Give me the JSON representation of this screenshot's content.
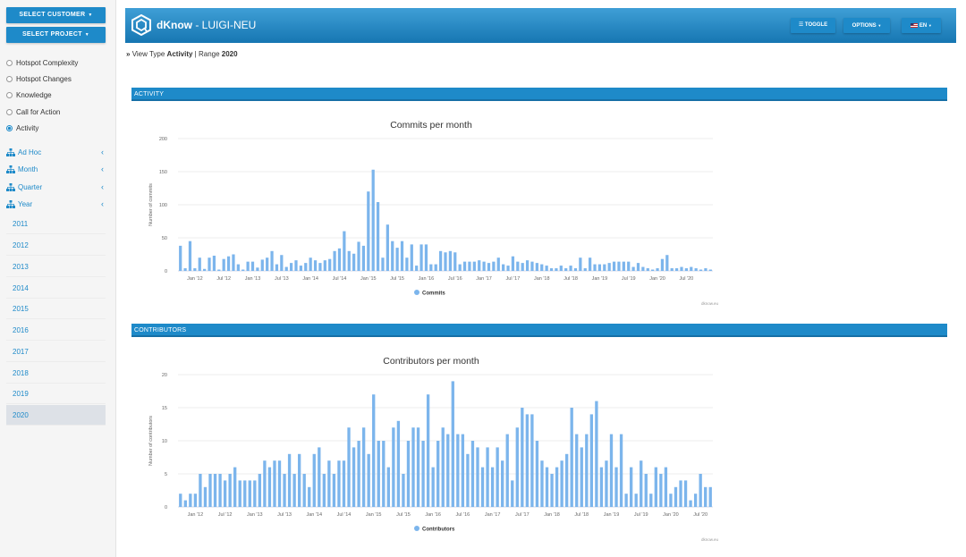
{
  "sidebar": {
    "select_customer": "SELECT CUSTOMER",
    "select_project": "SELECT PROJECT",
    "radio_items": [
      {
        "label": "Hotspot Complexity",
        "checked": false
      },
      {
        "label": "Hotspot Changes",
        "checked": false
      },
      {
        "label": "Knowledge",
        "checked": false
      },
      {
        "label": "Call for Action",
        "checked": false
      },
      {
        "label": "Activity",
        "checked": true
      }
    ],
    "nav_items": [
      {
        "label": "Ad Hoc",
        "icon": "sitemap-icon"
      },
      {
        "label": "Month",
        "icon": "sitemap-icon"
      },
      {
        "label": "Quarter",
        "icon": "sitemap-icon"
      },
      {
        "label": "Year",
        "icon": "sitemap-icon"
      }
    ],
    "years": [
      "2011",
      "2012",
      "2013",
      "2014",
      "2015",
      "2016",
      "2017",
      "2018",
      "2019",
      "2020"
    ],
    "active_year": "2020"
  },
  "header": {
    "brand_bold": "dKnow",
    "brand_rest": " - LUIGI-NEU",
    "toggle": "TOGGLE",
    "options": "OPTIONS",
    "language": "EN"
  },
  "breadcrumb": {
    "prefix": "View Type",
    "view_type": "Activity",
    "separator": " | Range ",
    "range": "2020"
  },
  "sections": {
    "activity": "ACTIVITY",
    "contributors": "CONTRIBUTORS"
  },
  "colors": {
    "accent": "#1e8ac9",
    "bar": "#7cb5ec"
  },
  "chart_data": [
    {
      "type": "bar",
      "title": "Commits per month",
      "ylabel": "Number of commits",
      "ylim": [
        0,
        200
      ],
      "yticks": [
        0,
        50,
        100,
        150,
        200
      ],
      "xticks": [
        "Jan '12",
        "Jul '12",
        "Jan '13",
        "Jul '13",
        "Jan '14",
        "Jul '14",
        "Jan '15",
        "Jul '15",
        "Jan '16",
        "Jul '16",
        "Jan '17",
        "Jul '17",
        "Jan '18",
        "Jul '18",
        "Jan '19",
        "Jul '19",
        "Jan '20",
        "Jul '20"
      ],
      "legend": "Commits",
      "credits": "dknow.eu",
      "start": "2011-10",
      "series": [
        {
          "name": "Commits",
          "values": [
            38,
            4,
            45,
            4,
            20,
            3,
            20,
            23,
            2,
            18,
            22,
            25,
            10,
            2,
            14,
            14,
            5,
            17,
            20,
            30,
            10,
            24,
            6,
            12,
            16,
            8,
            12,
            20,
            16,
            12,
            16,
            18,
            30,
            34,
            60,
            30,
            26,
            44,
            38,
            120,
            153,
            104,
            20,
            70,
            45,
            35,
            45,
            20,
            40,
            8,
            40,
            40,
            10,
            10,
            30,
            28,
            30,
            28,
            10,
            14,
            14,
            14,
            16,
            14,
            12,
            14,
            20,
            10,
            8,
            22,
            14,
            12,
            16,
            14,
            12,
            10,
            8,
            4,
            4,
            8,
            4,
            8,
            4,
            20,
            4,
            20,
            10,
            10,
            10,
            12,
            14,
            14,
            14,
            14,
            6,
            12,
            6,
            4,
            2,
            4,
            18,
            24,
            4,
            4,
            6,
            4,
            6,
            4,
            2,
            4,
            2
          ]
        }
      ]
    },
    {
      "type": "bar",
      "title": "Contributors per month",
      "ylabel": "Number of contributors",
      "ylim": [
        0,
        20
      ],
      "yticks": [
        0,
        5,
        10,
        15,
        20
      ],
      "xticks": [
        "Jan '12",
        "Jul '12",
        "Jan '13",
        "Jul '13",
        "Jan '14",
        "Jul '14",
        "Jan '15",
        "Jul '15",
        "Jan '16",
        "Jul '16",
        "Jan '17",
        "Jul '17",
        "Jan '18",
        "Jul '18",
        "Jan '19",
        "Jul '19",
        "Jan '20",
        "Jul '20"
      ],
      "legend": "Contributors",
      "credits": "dknow.eu",
      "start": "2011-10",
      "series": [
        {
          "name": "Contributors",
          "values": [
            2,
            1,
            2,
            2,
            5,
            3,
            5,
            5,
            5,
            4,
            5,
            6,
            4,
            4,
            4,
            4,
            5,
            7,
            6,
            7,
            7,
            5,
            8,
            5,
            8,
            5,
            3,
            8,
            9,
            5,
            7,
            5,
            7,
            7,
            12,
            9,
            10,
            12,
            8,
            17,
            10,
            10,
            6,
            12,
            13,
            5,
            10,
            12,
            12,
            10,
            17,
            6,
            10,
            12,
            11,
            19,
            11,
            11,
            8,
            10,
            9,
            6,
            9,
            6,
            9,
            7,
            11,
            4,
            12,
            15,
            14,
            14,
            10,
            7,
            6,
            5,
            6,
            7,
            8,
            15,
            11,
            9,
            11,
            14,
            16,
            6,
            7,
            11,
            6,
            11,
            2,
            6,
            2,
            7,
            5,
            2,
            6,
            5,
            6,
            2,
            3,
            4,
            4,
            1,
            2,
            5,
            3,
            3
          ]
        }
      ]
    }
  ]
}
